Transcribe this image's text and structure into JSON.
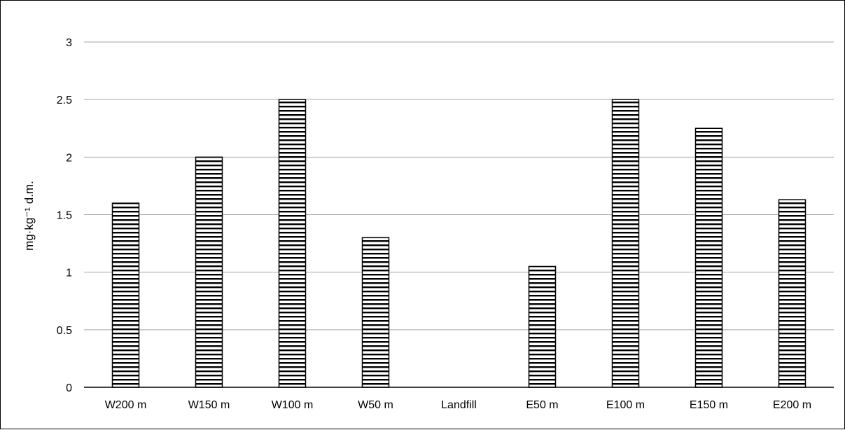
{
  "chart_data": {
    "type": "bar",
    "categories": [
      "W200 m",
      "W150 m",
      "W100 m",
      "W50 m",
      "Landfill",
      "E50 m",
      "E100 m",
      "E150 m",
      "E200 m"
    ],
    "values": [
      1.6,
      2.0,
      2.5,
      1.3,
      0,
      1.05,
      2.5,
      2.25,
      1.63
    ],
    "ylabel": "mg·kg⁻¹ d.m.",
    "ylim": [
      0,
      3
    ],
    "yticks": [
      "0",
      "0.5",
      "1",
      "1.5",
      "2",
      "2.5",
      "3"
    ],
    "grid": true,
    "bar_fill": "horizontal-stripes",
    "colors": {
      "stripe": "#000000",
      "background": "#ffffff",
      "grid": "#a6a6a6"
    }
  }
}
